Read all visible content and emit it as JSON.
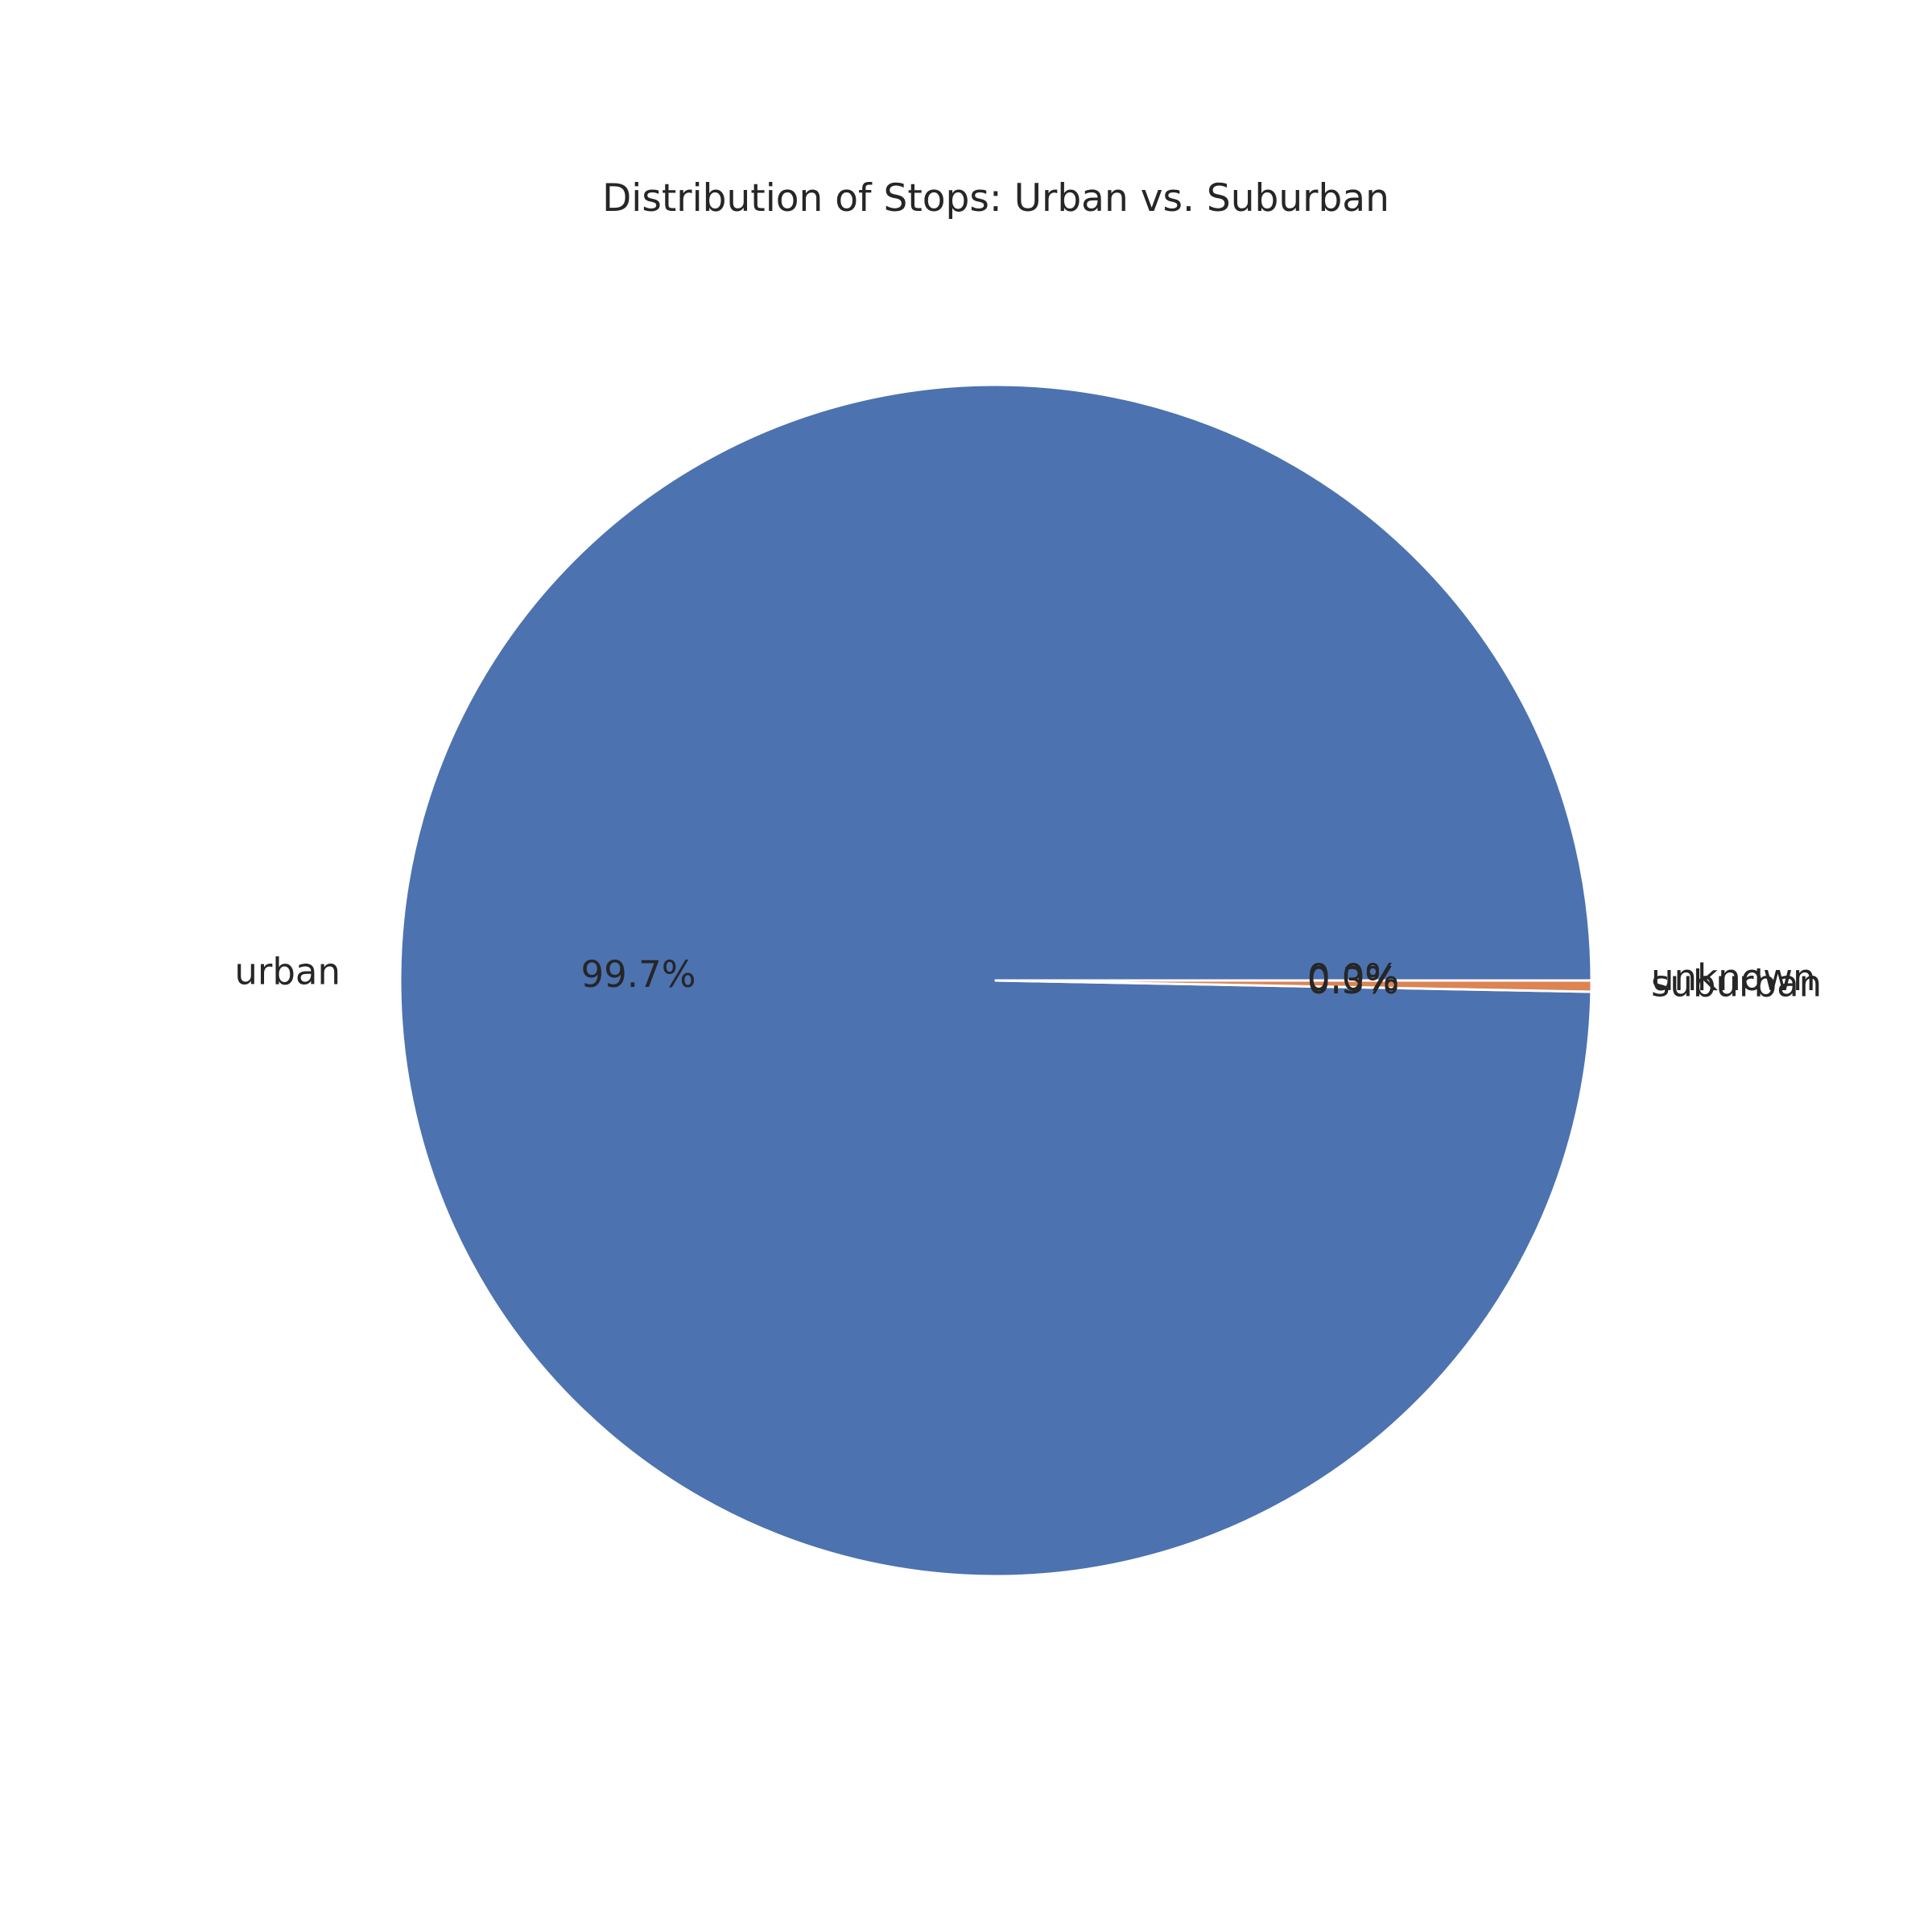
{
  "chart_data": {
    "type": "pie",
    "title": "Distribution of Stops: Urban vs. Suburban",
    "labels": [
      "urban",
      "suburban",
      "unknown"
    ],
    "values": [
      99.7,
      0.3,
      0.0
    ],
    "autopct": [
      "99.7%",
      "0.3%",
      "0.0%"
    ],
    "colors": [
      "#4c72b0",
      "#dd8452",
      "#55a868"
    ],
    "start_angle_deg": 0,
    "direction": "counterclockwise",
    "edge_color": "#ffffff",
    "legend": "none"
  }
}
